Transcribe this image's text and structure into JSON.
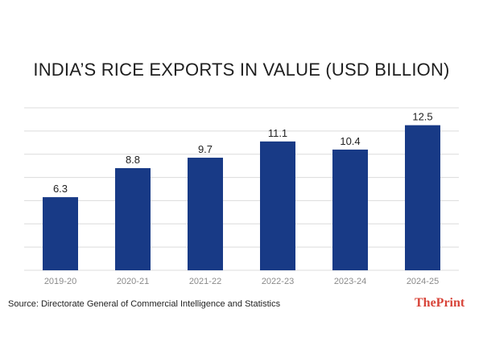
{
  "chart_data": {
    "type": "bar",
    "title": "INDIA’S RICE EXPORTS IN VALUE (USD BILLION)",
    "categories": [
      "2019-20",
      "2020-21",
      "2021-22",
      "2022-23",
      "2023-24",
      "2024-25"
    ],
    "values": [
      6.3,
      8.8,
      9.7,
      11.1,
      10.4,
      12.5
    ],
    "value_labels": [
      "6.3",
      "8.8",
      "9.7",
      "11.1",
      "10.4",
      "12.5"
    ],
    "xlabel": "",
    "ylabel": "",
    "ylim": [
      0,
      14
    ],
    "grid": true,
    "legend": "none",
    "bar_color": "#183a86"
  },
  "source": "Source: Directorate General of Commercial Intelligence and Statistics",
  "brand": "ThePrint",
  "colors": {
    "bar": "#183a86",
    "grid": "#dcdcdc",
    "brand": "#d8453a"
  }
}
